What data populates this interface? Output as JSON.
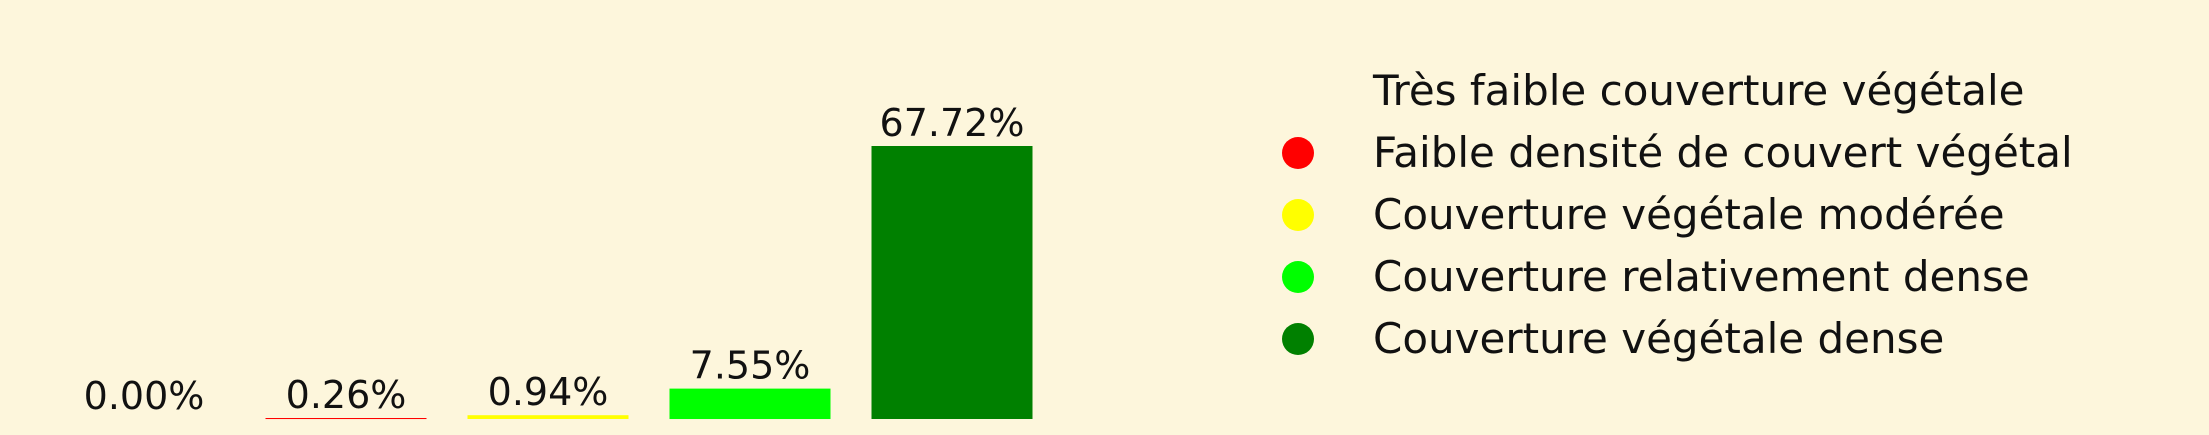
{
  "chart_data": {
    "type": "bar",
    "categories": [
      "Très faible couverture végétale",
      "Faible densité de couvert végétal",
      "Couverture végétale modérée",
      "Couverture relativement dense",
      "Couverture végétale dense"
    ],
    "values": [
      0.0,
      0.26,
      0.94,
      7.55,
      67.72
    ],
    "data_labels": [
      "0.00%",
      "0.26%",
      "0.94%",
      "7.55%",
      "67.72%"
    ],
    "colors": [
      "#fdf6dc",
      "#ff0000",
      "#ffff00",
      "#00ff00",
      "#008000"
    ],
    "legend": {
      "placement": "right",
      "entries": [
        {
          "label": "Très faible couverture végétale",
          "color": "#fdf6dc"
        },
        {
          "label": "Faible densité de couvert végétal",
          "color": "#ff0000"
        },
        {
          "label": "Couverture végétale modérée",
          "color": "#ffff00"
        },
        {
          "label": "Couverture relativement dense",
          "color": "#00ff00"
        },
        {
          "label": "Couverture végétale dense",
          "color": "#008000"
        }
      ]
    },
    "ylim": [
      0,
      67.72
    ],
    "grid": false,
    "background": "#fdf6dc"
  }
}
